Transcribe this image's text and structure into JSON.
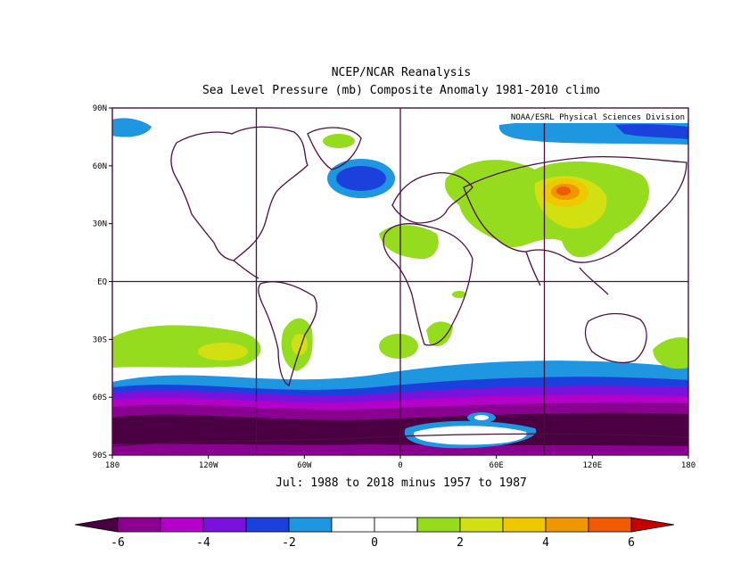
{
  "header": {
    "line1": "NCEP/NCAR Reanalysis",
    "line2": "Sea Level Pressure (mb) Composite Anomaly 1981-2010 climo"
  },
  "credit": "NOAA/ESRL Physical Sciences Division",
  "subtitle": "Jul: 1988 to 2018 minus 1957 to 1987",
  "map": {
    "lat_ticks": [
      "90N",
      "60N",
      "30N",
      "EQ",
      "30S",
      "60S",
      "90S"
    ],
    "lon_ticks": [
      "180",
      "120W",
      "60W",
      "0",
      "60E",
      "120E",
      "180"
    ],
    "gridlines": true,
    "projection": "cylindrical-equidistant"
  },
  "colorbar": {
    "labels": [
      "-6",
      "-4",
      "-2",
      "0",
      "2",
      "4",
      "6"
    ],
    "colors": [
      "#4a0042",
      "#8a0090",
      "#b400c8",
      "#7b12dc",
      "#1c40dc",
      "#1e96e0",
      "#ffffff",
      "#ffffff",
      "#96dc1e",
      "#d2e012",
      "#f0c800",
      "#f09600",
      "#f05a00",
      "#c80000"
    ]
  },
  "anomaly_regions": [
    {
      "label": "north-atlantic-low",
      "lon": -28,
      "lat": 53,
      "value": -3
    },
    {
      "label": "central-asia-high",
      "lon": 100,
      "lat": 45,
      "value": 5
    },
    {
      "label": "south-pacific-high",
      "lon": -120,
      "lat": -35,
      "value": 2
    },
    {
      "label": "south-america-high",
      "lon": -62,
      "lat": -35,
      "value": 2
    },
    {
      "label": "southern-ocean-low",
      "lon": 0,
      "lat": -68,
      "value": -5
    }
  ]
}
